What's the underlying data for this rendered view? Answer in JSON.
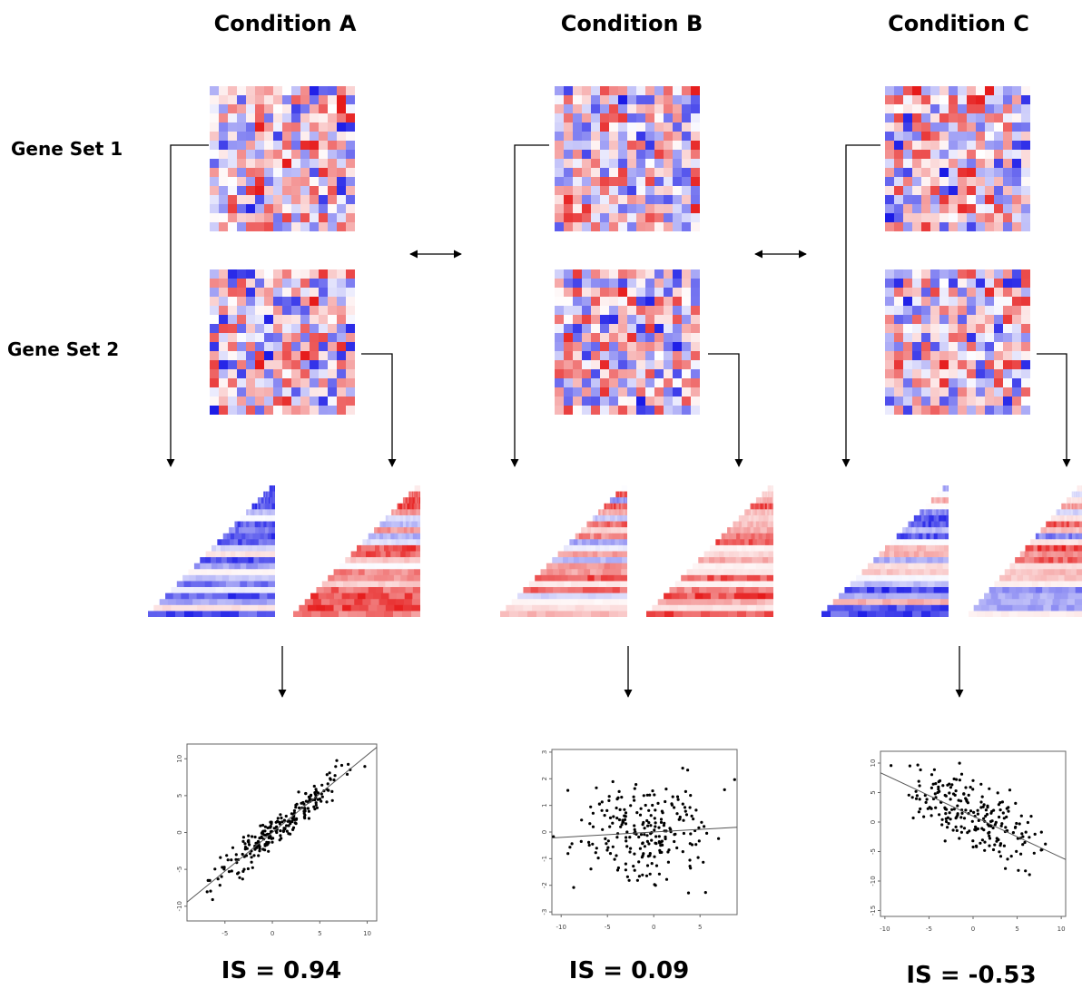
{
  "colors": {
    "low": "#1a1ae6",
    "mid": "#ffffff",
    "high": "#e61a1a",
    "line": "#000000"
  },
  "conditions": [
    {
      "id": "A",
      "label": "Condition A",
      "is_label": "IS = 0.94",
      "seed": 11,
      "plot": {
        "xlim": [
          -9,
          11
        ],
        "ylim": [
          -12,
          12
        ],
        "xticks": [
          "-5",
          "0",
          "5",
          "10"
        ],
        "yticks": [
          "-10",
          "-5",
          "0",
          "5",
          "10"
        ],
        "slope": 1.05,
        "intercept": 0.0,
        "spread": 1.6,
        "n": 230
      },
      "tri_bias": [
        -0.7,
        0.45
      ]
    },
    {
      "id": "B",
      "label": "Condition B",
      "is_label": "IS = 0.09",
      "seed": 23,
      "plot": {
        "xlim": [
          -11,
          9
        ],
        "ylim": [
          -3.1,
          3.1
        ],
        "xticks": [
          "-10",
          "-5",
          "0",
          "5"
        ],
        "yticks": [
          "-3",
          "-2",
          "-1",
          "0",
          "1",
          "2",
          "3"
        ],
        "slope": 0.02,
        "intercept": 0.0,
        "spread": 1.3,
        "n": 230
      },
      "tri_bias": [
        0.25,
        0.35
      ]
    },
    {
      "id": "C",
      "label": "Condition C",
      "is_label": "IS = -0.53",
      "seed": 37,
      "plot": {
        "xlim": [
          -10.5,
          10.5
        ],
        "ylim": [
          -16,
          12
        ],
        "xticks": [
          "-10",
          "-5",
          "0",
          "5",
          "10"
        ],
        "yticks": [
          "10",
          "5",
          "0",
          "-5",
          "-10",
          "-15"
        ],
        "slope": -0.7,
        "intercept": 1.0,
        "spread": 4.5,
        "n": 220
      },
      "tri_bias": [
        -0.4,
        0.2
      ]
    }
  ],
  "gene_sets": [
    {
      "label": "Gene Set 1"
    },
    {
      "label": "Gene Set 2"
    }
  ],
  "heatmap": {
    "rows": 16,
    "cols": 16
  }
}
